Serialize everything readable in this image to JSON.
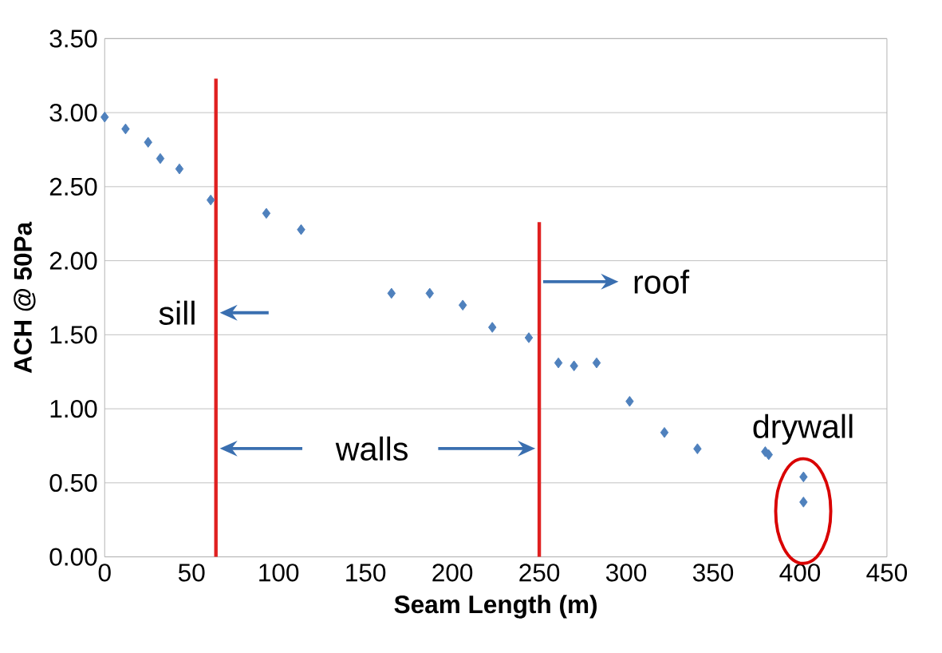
{
  "chart_data": {
    "type": "scatter",
    "xlabel": "Seam Length (m)",
    "ylabel": "ACH @ 50Pa",
    "xlim": [
      0,
      450
    ],
    "xticks": [
      0,
      50,
      100,
      150,
      200,
      250,
      300,
      350,
      400,
      450
    ],
    "ylim": [
      0,
      3.5
    ],
    "yticks": [
      {
        "value": 0,
        "label": "0.00"
      },
      {
        "value": 0.5,
        "label": "0.50"
      },
      {
        "value": 1,
        "label": "1.00"
      },
      {
        "value": 1.5,
        "label": "1.50"
      },
      {
        "value": 2,
        "label": "2.00"
      },
      {
        "value": 2.5,
        "label": "2.50"
      },
      {
        "value": 3,
        "label": "3.00"
      },
      {
        "value": 3.5,
        "label": "3.50"
      }
    ],
    "grid": "y",
    "marker": "diamond",
    "series": [
      {
        "color": "#4f81bd",
        "x": [
          0,
          12,
          25,
          32,
          43,
          61,
          93,
          113,
          165,
          187,
          206,
          223,
          244,
          261,
          270,
          283,
          302,
          322,
          341,
          380,
          382,
          402,
          402
        ],
        "values": [
          2.97,
          2.89,
          2.8,
          2.69,
          2.62,
          2.41,
          2.32,
          2.21,
          1.78,
          1.78,
          1.7,
          1.55,
          1.48,
          1.31,
          1.29,
          1.31,
          1.05,
          0.84,
          0.73,
          0.71,
          0.69,
          0.54,
          0.37
        ]
      },
      {
        "type": "line",
        "color": "#e02020",
        "marker": "none",
        "x": [
          64,
          64
        ],
        "values": [
          0,
          3.23
        ]
      },
      {
        "type": "line",
        "color": "#e02020",
        "marker": "none",
        "x": [
          250,
          250
        ],
        "values": [
          0,
          2.26
        ]
      }
    ],
    "annotations": [
      "sill",
      "roof",
      "walls",
      "drywall"
    ]
  }
}
